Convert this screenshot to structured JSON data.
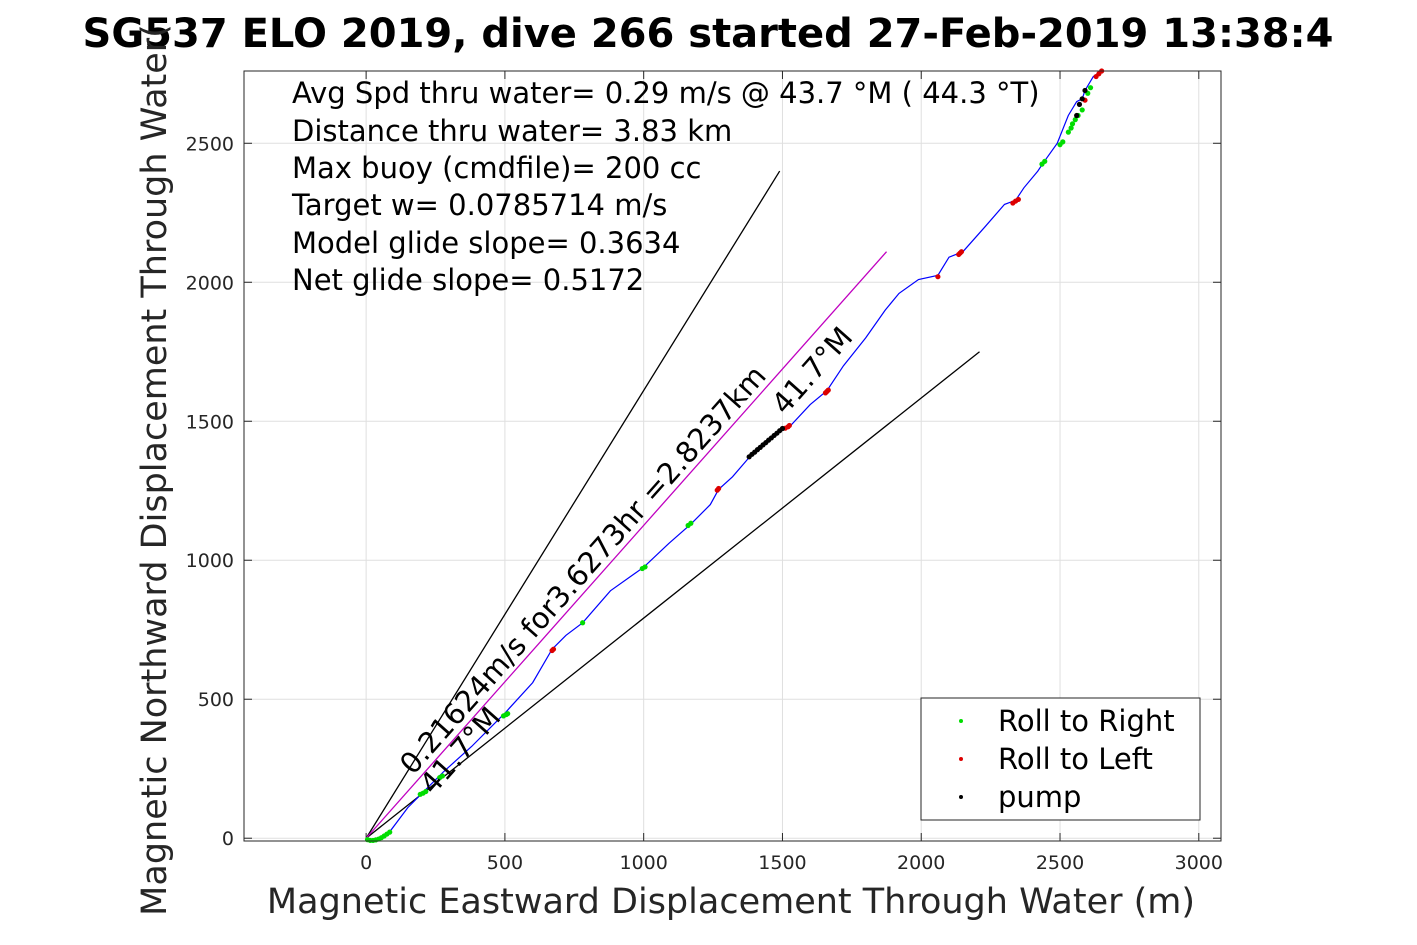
{
  "chart_data": {
    "type": "scatter",
    "title": "SG537 ELO 2019, dive 266 started 27-Feb-2019 13:38:4",
    "xlabel": "Magnetic Eastward Displacement Through Water (m)",
    "ylabel": "Magnetic Northward Displacement Through Water(",
    "xlim": [
      -440,
      3080
    ],
    "ylim": [
      -10,
      2760
    ],
    "xticks": [
      0,
      500,
      1000,
      1500,
      2000,
      2500,
      3000
    ],
    "yticks": [
      0,
      500,
      1000,
      1500,
      2000,
      2500
    ],
    "grid": true,
    "legend_position": "bottom-right",
    "info_lines": [
      "Avg Spd thru water=  0.29 m/s @  43.7 °M ( 44.3 °T)",
      "Distance thru water=  3.83 km",
      "Max buoy (cmdfile)= 200 cc",
      "Target w= 0.0785714 m/s",
      "Model glide slope= 0.3634",
      "Net glide slope= 0.5172"
    ],
    "annotations": {
      "track_label": "0.21624m/s for3.6273hr =2.8237km",
      "heading_upper": "41.7°M",
      "heading_lower": "41.7°M"
    },
    "reference_lines": [
      {
        "name": "glide-cone-left",
        "color": "#000000",
        "x": [
          0,
          1490
        ],
        "y": [
          0,
          2400
        ]
      },
      {
        "name": "glide-cone-right",
        "color": "#000000",
        "x": [
          0,
          2210
        ],
        "y": [
          0,
          1750
        ]
      },
      {
        "name": "heading-line",
        "color": "#c000c0",
        "x": [
          0,
          1875
        ],
        "y": [
          0,
          2110
        ]
      }
    ],
    "track": {
      "color": "#0000ff",
      "x": [
        0,
        30,
        60,
        90,
        150,
        200,
        280,
        380,
        500,
        600,
        670,
        720,
        780,
        880,
        1000,
        1090,
        1170,
        1240,
        1270,
        1320,
        1380,
        1500,
        1530,
        1600,
        1660,
        1720,
        1800,
        1870,
        1920,
        1990,
        2060,
        2100,
        2150,
        2230,
        2300,
        2340,
        2370,
        2420,
        2440,
        2490,
        2530,
        2560,
        2580,
        2590,
        2620,
        2650
      ],
      "y": [
        0,
        -5,
        5,
        30,
        110,
        160,
        240,
        330,
        450,
        560,
        680,
        730,
        775,
        890,
        975,
        1060,
        1130,
        1200,
        1255,
        1300,
        1370,
        1470,
        1485,
        1560,
        1610,
        1700,
        1800,
        1900,
        1960,
        2010,
        2025,
        2090,
        2110,
        2200,
        2280,
        2295,
        2340,
        2400,
        2430,
        2500,
        2600,
        2650,
        2660,
        2690,
        2740,
        2760
      ]
    },
    "series": [
      {
        "name": "Roll to Right",
        "color": "#00dd00",
        "x": [
          5,
          15,
          25,
          35,
          45,
          55,
          65,
          75,
          85,
          195,
          205,
          215,
          265,
          275,
          495,
          505,
          510,
          780,
          995,
          1005,
          1160,
          1170,
          2435,
          2445,
          2500,
          2510,
          2530,
          2540,
          2545,
          2555,
          2565,
          2580,
          2600,
          2610
        ],
        "y": [
          -5,
          -8,
          -8,
          -6,
          -3,
          2,
          8,
          15,
          22,
          158,
          162,
          168,
          218,
          224,
          440,
          445,
          448,
          775,
          970,
          976,
          1125,
          1133,
          2425,
          2435,
          2495,
          2505,
          2540,
          2555,
          2570,
          2585,
          2600,
          2620,
          2680,
          2700
        ]
      },
      {
        "name": "Roll to Left",
        "color": "#dd0000",
        "x": [
          670,
          675,
          1265,
          1270,
          1510,
          1520,
          1525,
          1655,
          1660,
          1665,
          2060,
          2135,
          2140,
          2145,
          2330,
          2340,
          2350,
          2590,
          2630,
          2640,
          2650
        ],
        "y": [
          675,
          680,
          1252,
          1258,
          1475,
          1480,
          1485,
          1602,
          1607,
          1612,
          2020,
          2100,
          2105,
          2110,
          2285,
          2292,
          2298,
          2655,
          2740,
          2750,
          2760
        ]
      },
      {
        "name": "pump",
        "color": "#000000",
        "x": [
          1380,
          1390,
          1400,
          1410,
          1420,
          1430,
          1440,
          1450,
          1460,
          1470,
          1480,
          1490,
          1500,
          2560,
          2570,
          2580,
          2590
        ],
        "y": [
          1372,
          1381,
          1389,
          1398,
          1406,
          1415,
          1423,
          1432,
          1440,
          1449,
          1457,
          1466,
          1474,
          2600,
          2640,
          2660,
          2690
        ]
      }
    ]
  }
}
